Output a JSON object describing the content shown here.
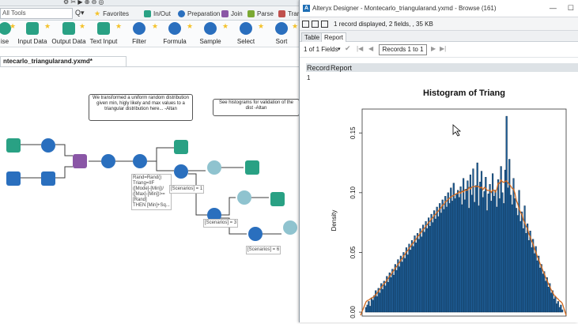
{
  "toolbar": {
    "search_placeholder": "All Tools",
    "categories": [
      "Favorites",
      "In/Out",
      "Preparation",
      "Join",
      "Parse",
      "Tran"
    ],
    "category_colors": [
      "#f4c22a",
      "#29a184",
      "#2a6fbe",
      "#8a56a6",
      "#7ba933",
      "#c0504d"
    ]
  },
  "palette": {
    "tools": [
      "ise",
      "Input Data",
      "Output Data",
      "Text Input",
      "Filter",
      "Formula",
      "Sample",
      "Select",
      "Sort"
    ],
    "colors": [
      "#29a184",
      "#29a184",
      "#29a184",
      "#29a184",
      "#2a6fbe",
      "#2a6fbe",
      "#2a6fbe",
      "#2a6fbe",
      "#2a6fbe"
    ]
  },
  "document_tab": "ntecarlo_triangularand.yxmd*",
  "canvas": {
    "comment1": "We transformed a uniform random distribution given min, higly likely and max values to a triangular distribution here... -Altan",
    "comment2": "See histograms for validation of the dist -Altan",
    "formula_annotation": "Rand=Rand()\nTriang=IIF\n([Mode]-[Min])/\n([Max]-[Min])>=\n[Rand]\nTHEN [Min]+Sq...",
    "scenario_labels": [
      "[Scenarios] = 1",
      "[Scenarios] = 3",
      "[Scenarios] = 6"
    ]
  },
  "browse": {
    "title": "Alteryx Designer - Montecarlo_triangularand.yxmd - Browse (161)",
    "window_controls": [
      "—",
      "☐"
    ],
    "status": "1 record displayed, 2 fields, , 35 KB",
    "tabs": [
      "Table",
      "Report"
    ],
    "fields_selector": "1 of 1 Fields",
    "records_label": "Records 1 to 1",
    "columns": [
      "Record",
      "Report"
    ],
    "record_value": "1"
  },
  "chart_data": {
    "type": "bar",
    "title": "Histogram of Triang",
    "ylabel": "Density",
    "yticks": [
      "0.00",
      "0.05",
      "0.10",
      "0.15"
    ],
    "ylim": [
      0,
      0.17
    ],
    "bar_color": "#1f5f99",
    "curve_color": "#d2691e",
    "values": [
      0.004,
      0.006,
      0.009,
      0.005,
      0.012,
      0.01,
      0.014,
      0.018,
      0.013,
      0.02,
      0.016,
      0.024,
      0.019,
      0.026,
      0.022,
      0.03,
      0.025,
      0.033,
      0.029,
      0.036,
      0.031,
      0.04,
      0.035,
      0.044,
      0.038,
      0.047,
      0.042,
      0.05,
      0.045,
      0.054,
      0.048,
      0.057,
      0.052,
      0.06,
      0.055,
      0.064,
      0.058,
      0.066,
      0.061,
      0.07,
      0.063,
      0.073,
      0.067,
      0.076,
      0.07,
      0.079,
      0.072,
      0.082,
      0.075,
      0.085,
      0.078,
      0.088,
      0.08,
      0.091,
      0.083,
      0.094,
      0.086,
      0.097,
      0.088,
      0.1,
      0.091,
      0.104,
      0.093,
      0.108,
      0.095,
      0.099,
      0.102,
      0.096,
      0.105,
      0.09,
      0.112,
      0.094,
      0.103,
      0.11,
      0.087,
      0.115,
      0.098,
      0.12,
      0.092,
      0.106,
      0.125,
      0.089,
      0.109,
      0.118,
      0.096,
      0.101,
      0.113,
      0.085,
      0.099,
      0.107,
      0.093,
      0.116,
      0.097,
      0.102,
      0.088,
      0.111,
      0.095,
      0.122,
      0.1,
      0.091,
      0.119,
      0.164,
      0.104,
      0.128,
      0.098,
      0.09,
      0.112,
      0.095,
      0.087,
      0.081,
      0.102,
      0.076,
      0.084,
      0.07,
      0.089,
      0.066,
      0.074,
      0.06,
      0.068,
      0.054,
      0.061,
      0.049,
      0.055,
      0.043,
      0.047,
      0.037,
      0.04,
      0.032,
      0.034,
      0.026,
      0.029,
      0.021,
      0.024,
      0.016,
      0.018,
      0.011,
      0.013,
      0.007,
      0.009,
      0.004,
      0.006,
      0.002
    ]
  }
}
